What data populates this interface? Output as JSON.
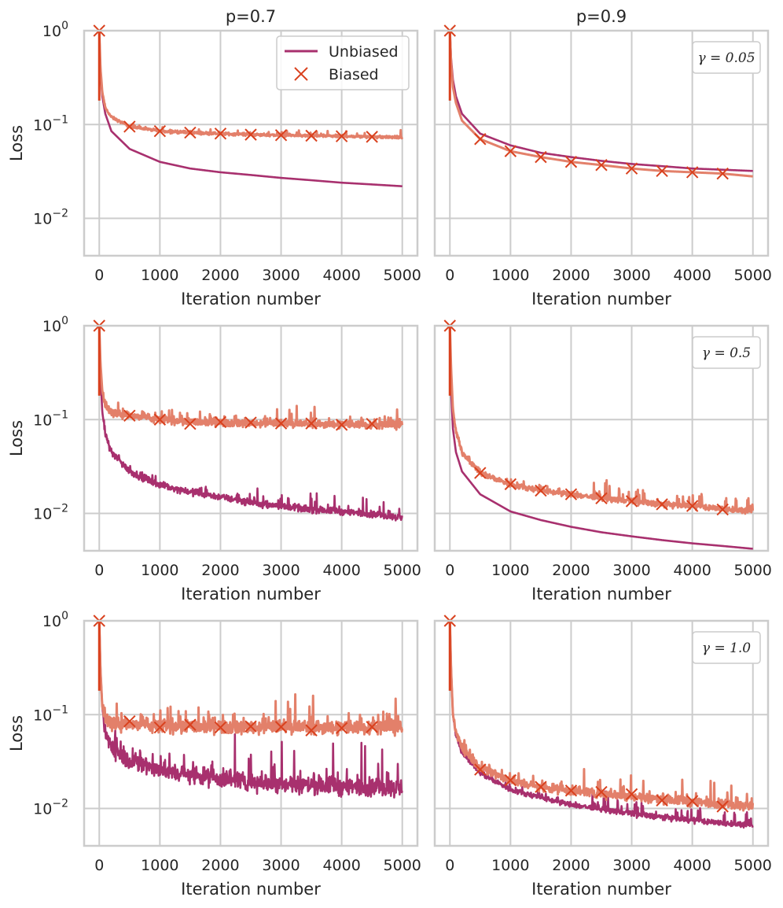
{
  "figure": {
    "xlabel": "Iteration number",
    "ylabel": "Loss",
    "column_titles": [
      "p=0.7",
      "p=0.9"
    ],
    "x_ticks": [
      "0",
      "1000",
      "2000",
      "3000",
      "4000",
      "5000"
    ],
    "y_ticks": [
      {
        "base": "10",
        "exp": "0"
      },
      {
        "base": "10",
        "exp": "−1"
      },
      {
        "base": "10",
        "exp": "−2"
      }
    ],
    "legend": {
      "unbiased": "Unbiased",
      "biased": "Biased"
    },
    "colors": {
      "unbiased": "#a8306e",
      "biased": "#e3806a",
      "marker": "#d9411e",
      "grid": "#cccccc",
      "spine": "#cccccc"
    }
  },
  "chart_data": [
    {
      "type": "line",
      "title": "p=0.7",
      "gamma_label": "",
      "xlabel": "Iteration number",
      "ylabel": "Loss",
      "yscale": "log",
      "xlim": [
        -250,
        5250
      ],
      "ylim": [
        0.004,
        1.0
      ],
      "noise": {
        "unbiased": 0.0,
        "biased": 0.02
      },
      "series": [
        {
          "name": "Unbiased",
          "x": [
            0,
            20,
            50,
            100,
            200,
            500,
            1000,
            1500,
            2000,
            2500,
            3000,
            3500,
            4000,
            4500,
            5000
          ],
          "y": [
            1.0,
            0.35,
            0.2,
            0.13,
            0.085,
            0.055,
            0.04,
            0.034,
            0.031,
            0.029,
            0.027,
            0.0255,
            0.024,
            0.023,
            0.022
          ]
        },
        {
          "name": "Biased",
          "x": [
            0,
            20,
            50,
            100,
            200,
            500,
            1000,
            1500,
            2000,
            2500,
            3000,
            3500,
            4000,
            4500,
            5000
          ],
          "y": [
            1.0,
            0.4,
            0.22,
            0.15,
            0.12,
            0.095,
            0.085,
            0.082,
            0.08,
            0.078,
            0.077,
            0.076,
            0.075,
            0.074,
            0.073
          ],
          "markers": {
            "x": [
              500,
              1000,
              1500,
              2000,
              2500,
              3000,
              3500,
              4000,
              4500
            ],
            "y": [
              0.095,
              0.085,
              0.082,
              0.08,
              0.078,
              0.077,
              0.076,
              0.075,
              0.074
            ]
          }
        }
      ]
    },
    {
      "type": "line",
      "title": "p=0.9",
      "gamma_label": "γ = 0.05",
      "xlabel": "Iteration number",
      "ylabel": "",
      "yscale": "log",
      "xlim": [
        -250,
        5250
      ],
      "ylim": [
        0.004,
        1.0
      ],
      "noise": {
        "unbiased": 0.0,
        "biased": 0.0
      },
      "series": [
        {
          "name": "Unbiased",
          "x": [
            0,
            20,
            50,
            100,
            200,
            500,
            1000,
            1500,
            2000,
            2500,
            3000,
            3500,
            4000,
            4500,
            5000
          ],
          "y": [
            1.0,
            0.5,
            0.3,
            0.2,
            0.13,
            0.08,
            0.06,
            0.05,
            0.045,
            0.041,
            0.038,
            0.036,
            0.034,
            0.033,
            0.032
          ]
        },
        {
          "name": "Biased",
          "x": [
            0,
            20,
            50,
            100,
            200,
            500,
            1000,
            1500,
            2000,
            2500,
            3000,
            3500,
            4000,
            4500,
            5000
          ],
          "y": [
            1.0,
            0.45,
            0.25,
            0.17,
            0.11,
            0.07,
            0.052,
            0.045,
            0.04,
            0.037,
            0.034,
            0.032,
            0.031,
            0.03,
            0.028
          ],
          "markers": {
            "x": [
              500,
              1000,
              1500,
              2000,
              2500,
              3000,
              3500,
              4000,
              4500
            ],
            "y": [
              0.07,
              0.052,
              0.045,
              0.04,
              0.037,
              0.034,
              0.032,
              0.031,
              0.03
            ]
          }
        }
      ]
    },
    {
      "type": "line",
      "title": "",
      "gamma_label": "",
      "xlabel": "Iteration number",
      "ylabel": "Loss",
      "yscale": "log",
      "xlim": [
        -250,
        5250
      ],
      "ylim": [
        0.004,
        1.0
      ],
      "noise": {
        "unbiased": 0.05,
        "biased": 0.06
      },
      "series": [
        {
          "name": "Unbiased",
          "x": [
            0,
            20,
            50,
            100,
            200,
            500,
            1000,
            1500,
            2000,
            2500,
            3000,
            3500,
            4000,
            4500,
            5000
          ],
          "y": [
            1.0,
            0.3,
            0.12,
            0.07,
            0.045,
            0.028,
            0.02,
            0.017,
            0.015,
            0.013,
            0.012,
            0.011,
            0.0105,
            0.0098,
            0.009
          ]
        },
        {
          "name": "Biased",
          "x": [
            0,
            20,
            50,
            100,
            200,
            500,
            1000,
            1500,
            2000,
            2500,
            3000,
            3500,
            4000,
            4500,
            5000
          ],
          "y": [
            1.0,
            0.4,
            0.2,
            0.14,
            0.12,
            0.11,
            0.1,
            0.095,
            0.093,
            0.092,
            0.091,
            0.09,
            0.089,
            0.088,
            0.087
          ],
          "markers": {
            "x": [
              500,
              1000,
              1500,
              2000,
              2500,
              3000,
              3500,
              4000,
              4500
            ],
            "y": [
              0.11,
              0.1,
              0.09,
              0.094,
              0.093,
              0.091,
              0.091,
              0.088,
              0.09
            ]
          }
        }
      ]
    },
    {
      "type": "line",
      "title": "",
      "gamma_label": "γ = 0.5",
      "xlabel": "Iteration number",
      "ylabel": "",
      "yscale": "log",
      "xlim": [
        -250,
        5250
      ],
      "ylim": [
        0.004,
        1.0
      ],
      "noise": {
        "unbiased": 0.0,
        "biased": 0.04
      },
      "series": [
        {
          "name": "Unbiased",
          "x": [
            0,
            20,
            50,
            100,
            200,
            500,
            1000,
            1500,
            2000,
            2500,
            3000,
            3500,
            4000,
            4500,
            5000
          ],
          "y": [
            1.0,
            0.2,
            0.08,
            0.045,
            0.028,
            0.016,
            0.0105,
            0.0085,
            0.0072,
            0.0063,
            0.0057,
            0.0052,
            0.0048,
            0.0045,
            0.0042
          ]
        },
        {
          "name": "Biased",
          "x": [
            0,
            20,
            50,
            100,
            200,
            500,
            1000,
            1500,
            2000,
            2500,
            3000,
            3500,
            4000,
            4500,
            5000
          ],
          "y": [
            1.0,
            0.35,
            0.13,
            0.075,
            0.045,
            0.027,
            0.0205,
            0.0175,
            0.016,
            0.0145,
            0.0135,
            0.0125,
            0.012,
            0.0112,
            0.0105
          ],
          "markers": {
            "x": [
              500,
              1000,
              1500,
              2000,
              2500,
              3000,
              3500,
              4000,
              4500
            ],
            "y": [
              0.027,
              0.0205,
              0.0175,
              0.016,
              0.0145,
              0.0135,
              0.0125,
              0.012,
              0.011
            ]
          }
        }
      ]
    },
    {
      "type": "line",
      "title": "",
      "gamma_label": "",
      "xlabel": "Iteration number",
      "ylabel": "Loss",
      "yscale": "log",
      "xlim": [
        -250,
        5250
      ],
      "ylim": [
        0.004,
        1.0
      ],
      "noise": {
        "unbiased": 0.14,
        "biased": 0.11
      },
      "series": [
        {
          "name": "Unbiased",
          "x": [
            0,
            20,
            50,
            100,
            200,
            500,
            1000,
            1500,
            2000,
            2500,
            3000,
            3500,
            4000,
            4500,
            5000
          ],
          "y": [
            1.0,
            0.3,
            0.12,
            0.065,
            0.045,
            0.032,
            0.026,
            0.023,
            0.021,
            0.0195,
            0.0185,
            0.0178,
            0.0172,
            0.0168,
            0.0165
          ]
        },
        {
          "name": "Biased",
          "x": [
            0,
            20,
            50,
            100,
            200,
            500,
            1000,
            1500,
            2000,
            2500,
            3000,
            3500,
            4000,
            4500,
            5000
          ],
          "y": [
            1.0,
            0.3,
            0.12,
            0.09,
            0.082,
            0.078,
            0.076,
            0.075,
            0.075,
            0.074,
            0.074,
            0.074,
            0.073,
            0.073,
            0.073
          ],
          "markers": {
            "x": [
              500,
              1000,
              1500,
              2000,
              2500,
              3000,
              3500,
              4000,
              4500
            ],
            "y": [
              0.085,
              0.073,
              0.078,
              0.073,
              0.075,
              0.074,
              0.068,
              0.072,
              0.074
            ]
          }
        }
      ]
    },
    {
      "type": "line",
      "title": "",
      "gamma_label": "γ = 1.0",
      "xlabel": "Iteration number",
      "ylabel": "",
      "yscale": "log",
      "xlim": [
        -250,
        5250
      ],
      "ylim": [
        0.004,
        1.0
      ],
      "noise": {
        "unbiased": 0.04,
        "biased": 0.07
      },
      "series": [
        {
          "name": "Unbiased",
          "x": [
            0,
            20,
            50,
            100,
            200,
            500,
            1000,
            1500,
            2000,
            2500,
            3000,
            3500,
            4000,
            4500,
            5000
          ],
          "y": [
            1.0,
            0.3,
            0.1,
            0.06,
            0.04,
            0.024,
            0.016,
            0.013,
            0.011,
            0.0098,
            0.0088,
            0.0081,
            0.0075,
            0.007,
            0.0066
          ]
        },
        {
          "name": "Biased",
          "x": [
            0,
            20,
            50,
            100,
            200,
            500,
            1000,
            1500,
            2000,
            2500,
            3000,
            3500,
            4000,
            4500,
            5000
          ],
          "y": [
            1.0,
            0.3,
            0.1,
            0.065,
            0.045,
            0.027,
            0.02,
            0.017,
            0.0155,
            0.0145,
            0.0135,
            0.0125,
            0.0118,
            0.0112,
            0.0105
          ],
          "markers": {
            "x": [
              500,
              1000,
              1500,
              2000,
              2500,
              3000,
              3500,
              4000,
              4500
            ],
            "y": [
              0.026,
              0.02,
              0.017,
              0.0155,
              0.015,
              0.0142,
              0.0122,
              0.012,
              0.0105
            ]
          }
        }
      ]
    }
  ]
}
